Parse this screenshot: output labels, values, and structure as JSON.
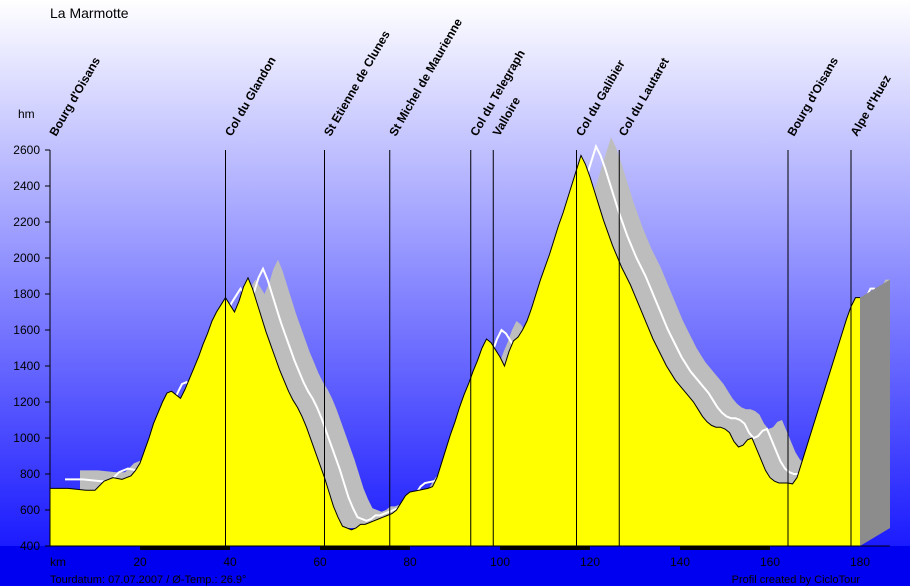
{
  "chart_data": {
    "type": "area",
    "title": "La Marmotte",
    "ylabel": "hm",
    "xlabel": "km",
    "xlim": [
      0,
      180
    ],
    "ylim": [
      400,
      2600
    ],
    "yticks": [
      400,
      600,
      800,
      1000,
      1200,
      1400,
      1600,
      1800,
      2000,
      2200,
      2400,
      2600
    ],
    "xticks": [
      20,
      40,
      60,
      80,
      100,
      120,
      140,
      160,
      180
    ],
    "profile": [
      [
        0,
        720
      ],
      [
        4,
        720
      ],
      [
        8,
        710
      ],
      [
        10,
        710
      ],
      [
        12,
        760
      ],
      [
        14,
        780
      ],
      [
        16,
        770
      ],
      [
        18,
        790
      ],
      [
        19,
        820
      ],
      [
        20,
        860
      ],
      [
        21,
        930
      ],
      [
        22,
        1000
      ],
      [
        23,
        1080
      ],
      [
        24,
        1140
      ],
      [
        25,
        1200
      ],
      [
        26,
        1250
      ],
      [
        27,
        1260
      ],
      [
        28,
        1240
      ],
      [
        29,
        1220
      ],
      [
        30,
        1270
      ],
      [
        31,
        1330
      ],
      [
        32,
        1390
      ],
      [
        33,
        1450
      ],
      [
        34,
        1520
      ],
      [
        35,
        1580
      ],
      [
        36,
        1650
      ],
      [
        37,
        1700
      ],
      [
        38,
        1740
      ],
      [
        39,
        1780
      ],
      [
        40,
        1740
      ],
      [
        41,
        1700
      ],
      [
        42,
        1760
      ],
      [
        43,
        1840
      ],
      [
        44,
        1890
      ],
      [
        45,
        1830
      ],
      [
        46,
        1750
      ],
      [
        47,
        1670
      ],
      [
        48,
        1590
      ],
      [
        49,
        1520
      ],
      [
        50,
        1450
      ],
      [
        51,
        1380
      ],
      [
        52,
        1320
      ],
      [
        53,
        1260
      ],
      [
        54,
        1210
      ],
      [
        55,
        1170
      ],
      [
        56,
        1120
      ],
      [
        57,
        1060
      ],
      [
        58,
        990
      ],
      [
        59,
        920
      ],
      [
        60,
        850
      ],
      [
        61,
        780
      ],
      [
        62,
        700
      ],
      [
        63,
        620
      ],
      [
        64,
        560
      ],
      [
        65,
        510
      ],
      [
        66,
        500
      ],
      [
        67,
        490
      ],
      [
        68,
        500
      ],
      [
        69,
        520
      ],
      [
        70,
        520
      ],
      [
        71,
        530
      ],
      [
        72,
        540
      ],
      [
        73,
        550
      ],
      [
        74,
        560
      ],
      [
        75,
        570
      ],
      [
        76,
        580
      ],
      [
        77,
        600
      ],
      [
        78,
        640
      ],
      [
        79,
        680
      ],
      [
        80,
        700
      ],
      [
        82,
        710
      ],
      [
        84,
        720
      ],
      [
        85,
        730
      ],
      [
        86,
        780
      ],
      [
        87,
        860
      ],
      [
        88,
        940
      ],
      [
        89,
        1020
      ],
      [
        90,
        1090
      ],
      [
        91,
        1170
      ],
      [
        92,
        1240
      ],
      [
        93,
        1300
      ],
      [
        94,
        1370
      ],
      [
        95,
        1430
      ],
      [
        96,
        1500
      ],
      [
        97,
        1550
      ],
      [
        98,
        1530
      ],
      [
        99,
        1490
      ],
      [
        100,
        1450
      ],
      [
        101,
        1400
      ],
      [
        102,
        1480
      ],
      [
        103,
        1540
      ],
      [
        104,
        1560
      ],
      [
        105,
        1600
      ],
      [
        106,
        1650
      ],
      [
        107,
        1720
      ],
      [
        108,
        1800
      ],
      [
        109,
        1880
      ],
      [
        110,
        1950
      ],
      [
        111,
        2020
      ],
      [
        112,
        2100
      ],
      [
        113,
        2180
      ],
      [
        114,
        2250
      ],
      [
        115,
        2330
      ],
      [
        116,
        2410
      ],
      [
        117,
        2490
      ],
      [
        118,
        2570
      ],
      [
        119,
        2520
      ],
      [
        120,
        2450
      ],
      [
        121,
        2370
      ],
      [
        122,
        2290
      ],
      [
        123,
        2210
      ],
      [
        124,
        2140
      ],
      [
        125,
        2070
      ],
      [
        126,
        2010
      ],
      [
        127,
        1950
      ],
      [
        128,
        1900
      ],
      [
        129,
        1850
      ],
      [
        130,
        1790
      ],
      [
        131,
        1730
      ],
      [
        132,
        1670
      ],
      [
        133,
        1610
      ],
      [
        134,
        1550
      ],
      [
        135,
        1500
      ],
      [
        136,
        1450
      ],
      [
        137,
        1400
      ],
      [
        138,
        1360
      ],
      [
        139,
        1320
      ],
      [
        140,
        1290
      ],
      [
        141,
        1260
      ],
      [
        142,
        1230
      ],
      [
        143,
        1200
      ],
      [
        144,
        1160
      ],
      [
        145,
        1120
      ],
      [
        146,
        1090
      ],
      [
        147,
        1070
      ],
      [
        148,
        1060
      ],
      [
        149,
        1060
      ],
      [
        150,
        1050
      ],
      [
        151,
        1030
      ],
      [
        152,
        980
      ],
      [
        153,
        950
      ],
      [
        154,
        960
      ],
      [
        155,
        990
      ],
      [
        156,
        1000
      ],
      [
        157,
        940
      ],
      [
        158,
        880
      ],
      [
        159,
        820
      ],
      [
        160,
        780
      ],
      [
        161,
        760
      ],
      [
        162,
        750
      ],
      [
        163,
        750
      ],
      [
        164,
        750
      ],
      [
        165,
        745
      ],
      [
        166,
        780
      ],
      [
        167,
        860
      ],
      [
        168,
        940
      ],
      [
        169,
        1020
      ],
      [
        170,
        1100
      ],
      [
        171,
        1180
      ],
      [
        172,
        1260
      ],
      [
        173,
        1340
      ],
      [
        174,
        1420
      ],
      [
        175,
        1500
      ],
      [
        176,
        1580
      ],
      [
        177,
        1660
      ],
      [
        178,
        1730
      ],
      [
        179,
        1780
      ],
      [
        180,
        1780
      ]
    ],
    "waypoints": [
      {
        "km": 0,
        "name": "Bourg d'Oisans"
      },
      {
        "km": 39,
        "name": "Col du Glandon"
      },
      {
        "km": 61,
        "name": "St Etienne de Clunes"
      },
      {
        "km": 75.5,
        "name": "St Michel de Maurienne"
      },
      {
        "km": 93.5,
        "name": "Col du Telegraph"
      },
      {
        "km": 98.5,
        "name": "Valloire"
      },
      {
        "km": 117,
        "name": "Col du Galibier"
      },
      {
        "km": 126.5,
        "name": "Col du Lautaret"
      },
      {
        "km": 164,
        "name": "Bourg d'Oisans"
      },
      {
        "km": 178,
        "name": "Alpe d'Huez"
      }
    ],
    "footer_left": "Tourdatum: 07.07.2007 / Ø-Temp.: 26.9°",
    "footer_right": "Profil created by CicloTour",
    "colors": {
      "profile_fill": "#ffff00",
      "shadow": "#bdbdbd",
      "side": "#8c8c8c",
      "bg_top": "#ffffff",
      "bg_bottom": "#0a0aff"
    }
  }
}
